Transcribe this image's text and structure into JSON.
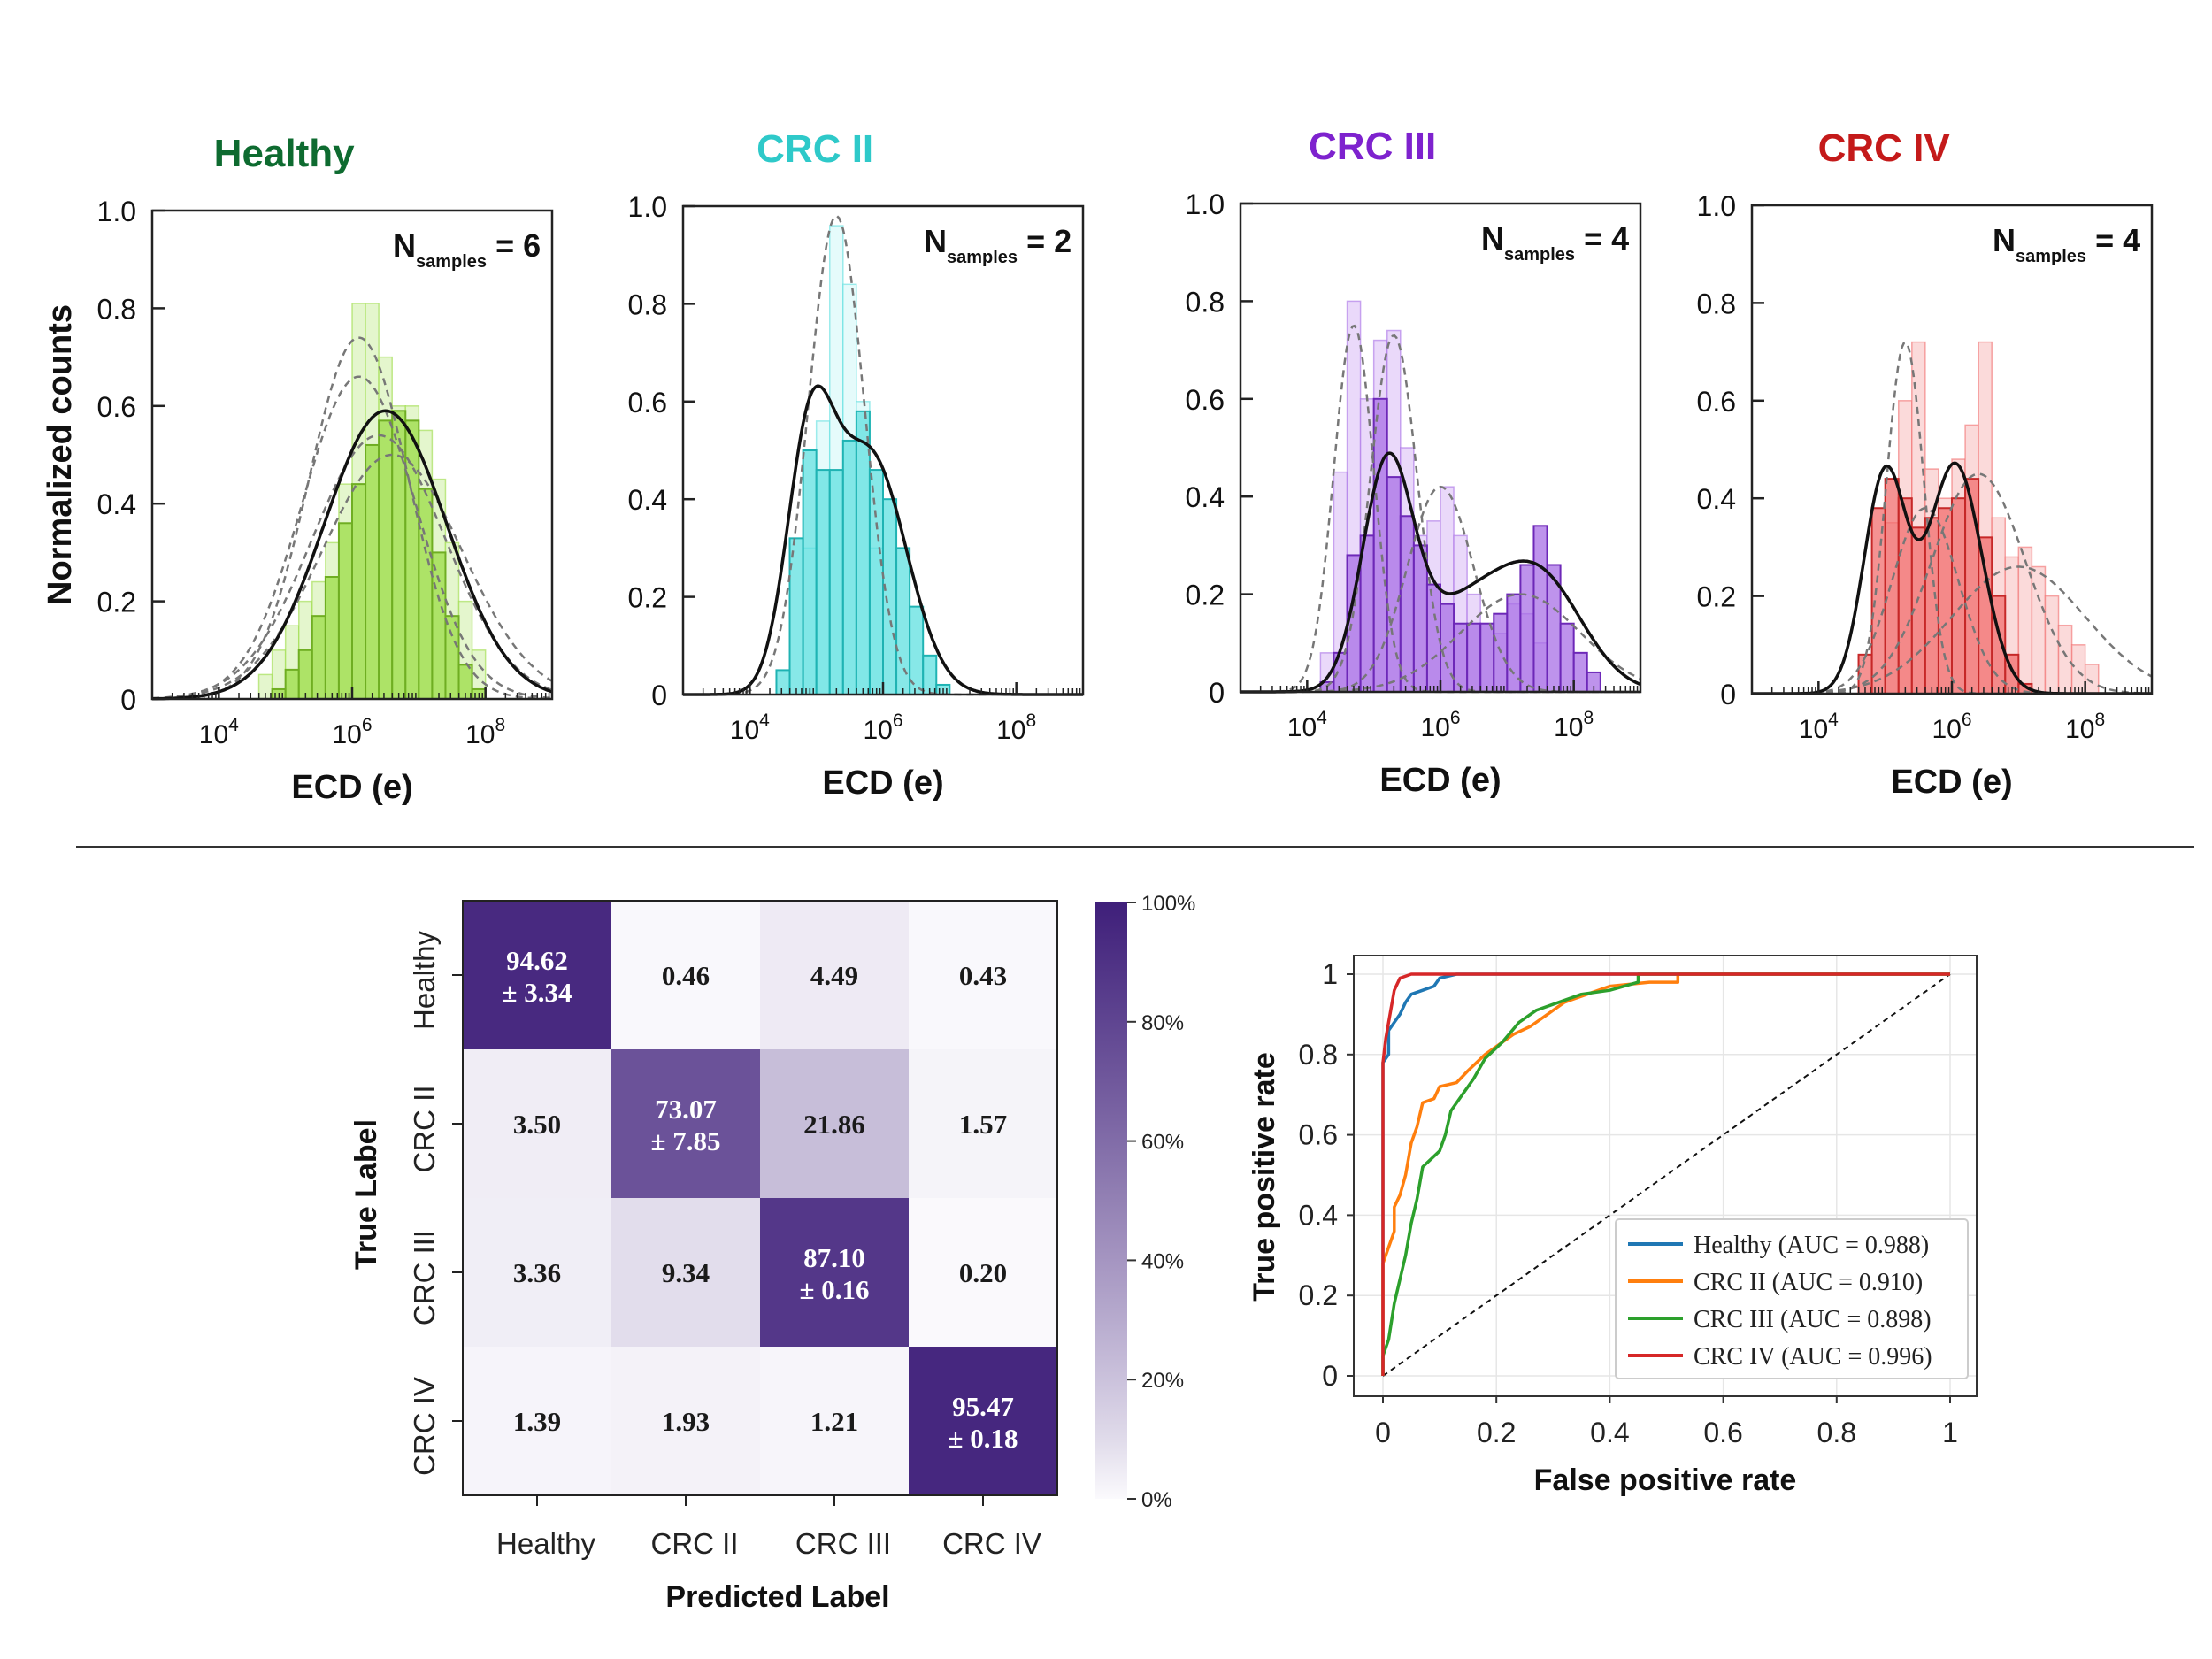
{
  "histograms": {
    "xlabel": "ECD (e)",
    "ylabel": "Normalized counts",
    "xtick_labels": [
      "10^4",
      "10^6",
      "10^8"
    ],
    "ytick_labels": [
      "0",
      "0.2",
      "0.4",
      "0.6",
      "0.8",
      "1.0"
    ],
    "panels": [
      {
        "title": "Healthy",
        "title_color": "#0e6b30",
        "fill": "#9bdc44",
        "edge": "#6fae22",
        "faint": "#e4f6cd",
        "nsamples_text": "= 6",
        "fits_solid": [
          {
            "mean": 6.5,
            "sigma": 0.92,
            "amp": 0.59
          }
        ],
        "fits_dashed": [
          {
            "mean": 6.1,
            "sigma": 0.75,
            "amp": 0.74
          },
          {
            "mean": 6.1,
            "sigma": 0.85,
            "amp": 0.66
          },
          {
            "mean": 6.4,
            "sigma": 1.0,
            "amp": 0.54
          },
          {
            "mean": 6.6,
            "sigma": 1.05,
            "amp": 0.5
          }
        ],
        "bars_faint": [
          [
            4.6,
            0.05
          ],
          [
            4.8,
            0.1
          ],
          [
            5.0,
            0.15
          ],
          [
            5.2,
            0.2
          ],
          [
            5.4,
            0.24
          ],
          [
            5.6,
            0.32
          ],
          [
            5.8,
            0.44
          ],
          [
            6.0,
            0.81
          ],
          [
            6.2,
            0.81
          ],
          [
            6.4,
            0.7
          ],
          [
            6.6,
            0.6
          ],
          [
            6.8,
            0.6
          ],
          [
            7.0,
            0.55
          ],
          [
            7.2,
            0.45
          ],
          [
            7.4,
            0.32
          ],
          [
            7.6,
            0.2
          ],
          [
            7.8,
            0.1
          ]
        ],
        "bars_main": [
          [
            4.8,
            0.02
          ],
          [
            5.0,
            0.06
          ],
          [
            5.2,
            0.1
          ],
          [
            5.4,
            0.17
          ],
          [
            5.6,
            0.25
          ],
          [
            5.8,
            0.36
          ],
          [
            6.0,
            0.44
          ],
          [
            6.2,
            0.52
          ],
          [
            6.4,
            0.57
          ],
          [
            6.6,
            0.59
          ],
          [
            6.8,
            0.57
          ],
          [
            7.0,
            0.43
          ],
          [
            7.2,
            0.3
          ],
          [
            7.4,
            0.17
          ],
          [
            7.6,
            0.07
          ],
          [
            7.8,
            0.02
          ]
        ]
      },
      {
        "title": "CRC II",
        "title_color": "#2ec9c9",
        "fill": "#5fe0e0",
        "edge": "#1fb3b3",
        "faint": "#e5fbfb",
        "nsamples_text": "= 2",
        "fits_solid": [
          {
            "mean": 4.9,
            "sigma": 0.35,
            "amp": 0.48
          },
          {
            "mean": 5.8,
            "sigma": 0.55,
            "amp": 0.49
          }
        ],
        "fits_dashed": [
          {
            "mean": 5.3,
            "sigma": 0.42,
            "amp": 0.98
          }
        ],
        "bars_faint": [
          [
            4.8,
            0.3
          ],
          [
            5.0,
            0.56
          ],
          [
            5.2,
            0.96
          ],
          [
            5.4,
            0.84
          ],
          [
            5.6,
            0.6
          ],
          [
            5.8,
            0.3
          ]
        ],
        "bars_main": [
          [
            4.4,
            0.05
          ],
          [
            4.6,
            0.32
          ],
          [
            4.8,
            0.5
          ],
          [
            5.0,
            0.46
          ],
          [
            5.2,
            0.46
          ],
          [
            5.4,
            0.52
          ],
          [
            5.6,
            0.58
          ],
          [
            5.8,
            0.46
          ],
          [
            6.0,
            0.4
          ],
          [
            6.2,
            0.3
          ],
          [
            6.4,
            0.18
          ],
          [
            6.6,
            0.08
          ],
          [
            6.8,
            0.02
          ]
        ]
      },
      {
        "title": "CRC III",
        "title_color": "#7e22ce",
        "fill": "#a86fe6",
        "edge": "#6d28b8",
        "faint": "#ead9fa",
        "nsamples_text": "= 4",
        "fits_solid": [
          {
            "mean": 5.2,
            "sigma": 0.38,
            "amp": 0.44
          },
          {
            "mean": 6.3,
            "sigma": 0.7,
            "amp": 0.16
          },
          {
            "mean": 7.5,
            "sigma": 0.65,
            "amp": 0.22
          }
        ],
        "fits_dashed": [
          {
            "mean": 4.7,
            "sigma": 0.3,
            "amp": 0.75
          },
          {
            "mean": 5.3,
            "sigma": 0.35,
            "amp": 0.73
          },
          {
            "mean": 6.0,
            "sigma": 0.5,
            "amp": 0.42
          },
          {
            "mean": 7.2,
            "sigma": 0.9,
            "amp": 0.2
          }
        ],
        "bars_faint": [
          [
            4.2,
            0.08
          ],
          [
            4.4,
            0.45
          ],
          [
            4.6,
            0.8
          ],
          [
            4.8,
            0.6
          ],
          [
            5.0,
            0.72
          ],
          [
            5.2,
            0.74
          ],
          [
            5.4,
            0.5
          ],
          [
            5.6,
            0.32
          ],
          [
            5.8,
            0.35
          ],
          [
            6.0,
            0.42
          ],
          [
            6.2,
            0.32
          ],
          [
            6.4,
            0.2
          ],
          [
            6.6,
            0.14
          ],
          [
            6.8,
            0.12
          ],
          [
            7.0,
            0.18
          ],
          [
            7.2,
            0.16
          ],
          [
            7.4,
            0.1
          ]
        ],
        "bars_main": [
          [
            4.2,
            0.02
          ],
          [
            4.4,
            0.08
          ],
          [
            4.6,
            0.28
          ],
          [
            4.8,
            0.32
          ],
          [
            5.0,
            0.6
          ],
          [
            5.2,
            0.44
          ],
          [
            5.4,
            0.36
          ],
          [
            5.6,
            0.3
          ],
          [
            5.8,
            0.22
          ],
          [
            6.0,
            0.18
          ],
          [
            6.2,
            0.14
          ],
          [
            6.4,
            0.14
          ],
          [
            6.6,
            0.14
          ],
          [
            6.8,
            0.16
          ],
          [
            7.0,
            0.2
          ],
          [
            7.2,
            0.26
          ],
          [
            7.4,
            0.34
          ],
          [
            7.6,
            0.26
          ],
          [
            7.8,
            0.14
          ],
          [
            8.0,
            0.08
          ],
          [
            8.2,
            0.04
          ]
        ]
      },
      {
        "title": "CRC IV",
        "title_color": "#c41a1a",
        "fill": "#f26e6e",
        "edge": "#c62828",
        "faint": "#fbdada",
        "nsamples_text": "= 4",
        "fits_solid": [
          {
            "mean": 5.0,
            "sigma": 0.32,
            "amp": 0.45
          },
          {
            "mean": 6.05,
            "sigma": 0.4,
            "amp": 0.47
          }
        ],
        "fits_dashed": [
          {
            "mean": 5.3,
            "sigma": 0.28,
            "amp": 0.72
          },
          {
            "mean": 5.6,
            "sigma": 0.5,
            "amp": 0.38
          },
          {
            "mean": 6.4,
            "sigma": 0.7,
            "amp": 0.45
          },
          {
            "mean": 7.0,
            "sigma": 1.0,
            "amp": 0.26
          }
        ],
        "bars_faint": [
          [
            5.0,
            0.35
          ],
          [
            5.2,
            0.6
          ],
          [
            5.4,
            0.72
          ],
          [
            5.6,
            0.46
          ],
          [
            5.8,
            0.4
          ],
          [
            6.0,
            0.48
          ],
          [
            6.2,
            0.55
          ],
          [
            6.4,
            0.72
          ],
          [
            6.6,
            0.36
          ],
          [
            6.8,
            0.28
          ],
          [
            7.0,
            0.3
          ],
          [
            7.2,
            0.26
          ],
          [
            7.4,
            0.2
          ],
          [
            7.6,
            0.14
          ],
          [
            7.8,
            0.1
          ],
          [
            8.0,
            0.06
          ]
        ],
        "bars_main": [
          [
            4.6,
            0.08
          ],
          [
            4.8,
            0.38
          ],
          [
            5.0,
            0.44
          ],
          [
            5.2,
            0.4
          ],
          [
            5.4,
            0.34
          ],
          [
            5.6,
            0.36
          ],
          [
            5.8,
            0.38
          ],
          [
            6.0,
            0.4
          ],
          [
            6.2,
            0.44
          ],
          [
            6.4,
            0.32
          ],
          [
            6.6,
            0.2
          ],
          [
            6.8,
            0.08
          ],
          [
            7.0,
            0.02
          ]
        ]
      }
    ]
  },
  "confusion": {
    "xlabel": "Predicted Label",
    "ylabel": "True Label",
    "labels": [
      "Healthy",
      "CRC II",
      "CRC III",
      "CRC IV"
    ],
    "cells": [
      [
        {
          "v": 94.62,
          "t": "94.62",
          "sd": "± 3.34"
        },
        {
          "v": 0.46,
          "t": "0.46"
        },
        {
          "v": 4.49,
          "t": "4.49"
        },
        {
          "v": 0.43,
          "t": "0.43"
        }
      ],
      [
        {
          "v": 3.5,
          "t": "3.50"
        },
        {
          "v": 73.07,
          "t": "73.07",
          "sd": "± 7.85"
        },
        {
          "v": 21.86,
          "t": "21.86"
        },
        {
          "v": 1.57,
          "t": "1.57"
        }
      ],
      [
        {
          "v": 3.36,
          "t": "3.36"
        },
        {
          "v": 9.34,
          "t": "9.34"
        },
        {
          "v": 87.1,
          "t": "87.10",
          "sd": "± 0.16"
        },
        {
          "v": 0.2,
          "t": "0.20"
        }
      ],
      [
        {
          "v": 1.39,
          "t": "1.39"
        },
        {
          "v": 1.93,
          "t": "1.93"
        },
        {
          "v": 1.21,
          "t": "1.21"
        },
        {
          "v": 95.47,
          "t": "95.47",
          "sd": "± 0.18"
        }
      ]
    ],
    "colorbar_ticks": [
      "100%",
      "80%",
      "60%",
      "40%",
      "20%",
      "0%"
    ],
    "color_low": "#fbfafd",
    "color_high": "#3f1f7a"
  },
  "chart_data": [
    {
      "type": "heatmap",
      "title": "",
      "xlabel": "Predicted Label",
      "ylabel": "True Label",
      "x": [
        "Healthy",
        "CRC II",
        "CRC III",
        "CRC IV"
      ],
      "y": [
        "Healthy",
        "CRC II",
        "CRC III",
        "CRC IV"
      ],
      "values": [
        [
          94.62,
          0.46,
          4.49,
          0.43
        ],
        [
          3.5,
          73.07,
          21.86,
          1.57
        ],
        [
          3.36,
          9.34,
          87.1,
          0.2
        ],
        [
          1.39,
          1.93,
          1.21,
          95.47
        ]
      ],
      "std": [
        [
          3.34,
          null,
          null,
          null
        ],
        [
          null,
          7.85,
          null,
          null
        ],
        [
          null,
          null,
          0.16,
          null
        ],
        [
          null,
          null,
          null,
          0.18
        ]
      ],
      "range": [
        0,
        100
      ]
    },
    {
      "type": "line",
      "title": "",
      "xlabel": "False positive rate",
      "ylabel": "True positive rate",
      "xlim": [
        0,
        1
      ],
      "ylim": [
        0,
        1
      ],
      "xticks": [
        "0",
        "0.2",
        "0.4",
        "0.6",
        "0.8",
        "1"
      ],
      "yticks": [
        "0",
        "0.2",
        "0.4",
        "0.6",
        "0.8",
        "1"
      ],
      "grid": true,
      "legend": "lower-right",
      "series": [
        {
          "name": "Healthy (AUC = 0.988)",
          "color": "#1f77b4",
          "points": [
            [
              0,
              0
            ],
            [
              0,
              0.78
            ],
            [
              0.01,
              0.8
            ],
            [
              0.01,
              0.86
            ],
            [
              0.02,
              0.88
            ],
            [
              0.03,
              0.9
            ],
            [
              0.04,
              0.93
            ],
            [
              0.05,
              0.95
            ],
            [
              0.07,
              0.96
            ],
            [
              0.09,
              0.97
            ],
            [
              0.1,
              0.99
            ],
            [
              0.13,
              1.0
            ],
            [
              1,
              1
            ]
          ]
        },
        {
          "name": "CRC II (AUC = 0.910)",
          "color": "#ff7f0e",
          "points": [
            [
              0,
              0
            ],
            [
              0,
              0.28
            ],
            [
              0.01,
              0.32
            ],
            [
              0.02,
              0.36
            ],
            [
              0.02,
              0.42
            ],
            [
              0.03,
              0.45
            ],
            [
              0.04,
              0.5
            ],
            [
              0.05,
              0.58
            ],
            [
              0.06,
              0.62
            ],
            [
              0.07,
              0.68
            ],
            [
              0.09,
              0.69
            ],
            [
              0.1,
              0.72
            ],
            [
              0.13,
              0.73
            ],
            [
              0.15,
              0.76
            ],
            [
              0.18,
              0.8
            ],
            [
              0.2,
              0.82
            ],
            [
              0.23,
              0.85
            ],
            [
              0.26,
              0.87
            ],
            [
              0.29,
              0.9
            ],
            [
              0.32,
              0.93
            ],
            [
              0.36,
              0.95
            ],
            [
              0.4,
              0.97
            ],
            [
              0.47,
              0.98
            ],
            [
              0.52,
              0.98
            ],
            [
              0.52,
              1.0
            ],
            [
              1,
              1
            ]
          ]
        },
        {
          "name": "CRC III (AUC = 0.898)",
          "color": "#2ca02c",
          "points": [
            [
              0,
              0
            ],
            [
              0,
              0.05
            ],
            [
              0.01,
              0.09
            ],
            [
              0.02,
              0.18
            ],
            [
              0.03,
              0.24
            ],
            [
              0.04,
              0.3
            ],
            [
              0.05,
              0.38
            ],
            [
              0.06,
              0.44
            ],
            [
              0.07,
              0.52
            ],
            [
              0.1,
              0.56
            ],
            [
              0.11,
              0.6
            ],
            [
              0.12,
              0.66
            ],
            [
              0.14,
              0.7
            ],
            [
              0.16,
              0.74
            ],
            [
              0.18,
              0.79
            ],
            [
              0.21,
              0.83
            ],
            [
              0.24,
              0.88
            ],
            [
              0.27,
              0.91
            ],
            [
              0.31,
              0.93
            ],
            [
              0.35,
              0.95
            ],
            [
              0.4,
              0.96
            ],
            [
              0.45,
              0.98
            ],
            [
              0.45,
              1.0
            ],
            [
              1,
              1
            ]
          ]
        },
        {
          "name": "CRC IV (AUC = 0.996)",
          "color": "#d62728",
          "points": [
            [
              0,
              0
            ],
            [
              0,
              0.78
            ],
            [
              0.005,
              0.84
            ],
            [
              0.01,
              0.88
            ],
            [
              0.015,
              0.92
            ],
            [
              0.02,
              0.96
            ],
            [
              0.03,
              0.99
            ],
            [
              0.05,
              1.0
            ],
            [
              1,
              1
            ]
          ]
        }
      ],
      "diagonal": true
    }
  ],
  "roc": {
    "xlabel": "False positive rate",
    "ylabel": "True positive rate",
    "xticks": [
      "0",
      "0.2",
      "0.4",
      "0.6",
      "0.8",
      "1"
    ],
    "yticks": [
      "0",
      "0.2",
      "0.4",
      "0.6",
      "0.8",
      "1"
    ]
  }
}
